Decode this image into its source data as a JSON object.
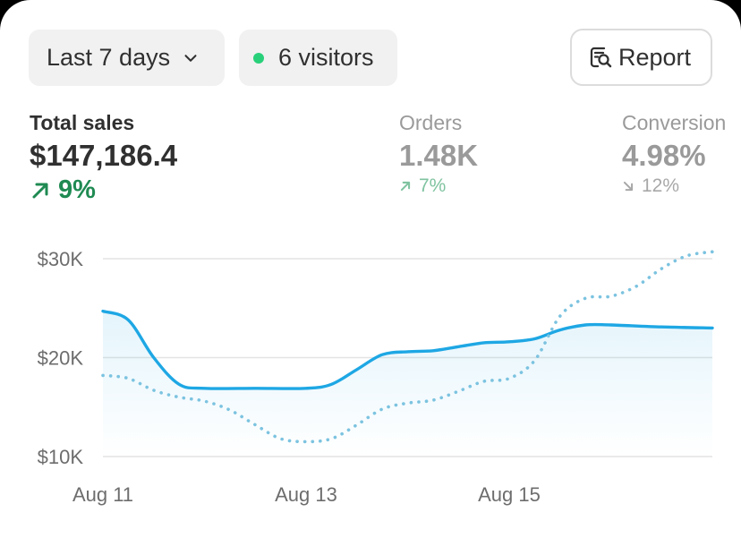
{
  "filters": {
    "range_label": "Last 7 days",
    "visitors_label": "6 visitors",
    "visitors_dot_color": "#29d07a",
    "range_icon": "chevron-down-icon",
    "report_icon": "report-search-icon"
  },
  "report_button": {
    "label": "Report"
  },
  "metrics": {
    "total_sales": {
      "label": "Total sales",
      "value": "$147,186.4",
      "delta": "9%",
      "trend": "up",
      "color": "#1f8a52"
    },
    "orders": {
      "label": "Orders",
      "value": "1.48K",
      "delta": "7%",
      "trend": "up"
    },
    "conversion": {
      "label": "Conversion",
      "value": "4.98%",
      "delta": "12%",
      "trend": "down"
    }
  },
  "chart_data": {
    "type": "line",
    "ylim": [
      10000,
      30000
    ],
    "yticks": [
      {
        "value": 30000,
        "label": "$30K"
      },
      {
        "value": 20000,
        "label": "$20K"
      },
      {
        "value": 10000,
        "label": "$10K"
      }
    ],
    "xlim": [
      0,
      6
    ],
    "xticks": [
      {
        "value": 0,
        "label": "Aug 11"
      },
      {
        "value": 2,
        "label": "Aug 13"
      },
      {
        "value": 4,
        "label": "Aug 15"
      }
    ],
    "grid": true,
    "series": [
      {
        "style": "solid",
        "color": "#1ea7e4",
        "fill": true,
        "points": [
          {
            "x": 0,
            "y": 24700
          },
          {
            "x": 0.25,
            "y": 23800
          },
          {
            "x": 0.5,
            "y": 20000
          },
          {
            "x": 0.75,
            "y": 17300
          },
          {
            "x": 1,
            "y": 16900
          },
          {
            "x": 1.5,
            "y": 16900
          },
          {
            "x": 2,
            "y": 16900
          },
          {
            "x": 2.25,
            "y": 17300
          },
          {
            "x": 2.5,
            "y": 18800
          },
          {
            "x": 2.75,
            "y": 20300
          },
          {
            "x": 3,
            "y": 20600
          },
          {
            "x": 3.25,
            "y": 20700
          },
          {
            "x": 3.5,
            "y": 21100
          },
          {
            "x": 3.75,
            "y": 21500
          },
          {
            "x": 4,
            "y": 21600
          },
          {
            "x": 4.25,
            "y": 21900
          },
          {
            "x": 4.5,
            "y": 22800
          },
          {
            "x": 4.75,
            "y": 23300
          },
          {
            "x": 5,
            "y": 23300
          },
          {
            "x": 5.5,
            "y": 23100
          },
          {
            "x": 6,
            "y": 23000
          }
        ]
      },
      {
        "style": "dotted",
        "color": "#7cc3e0",
        "fill": false,
        "points": [
          {
            "x": 0,
            "y": 18200
          },
          {
            "x": 0.25,
            "y": 17900
          },
          {
            "x": 0.5,
            "y": 16700
          },
          {
            "x": 0.75,
            "y": 16000
          },
          {
            "x": 1,
            "y": 15600
          },
          {
            "x": 1.25,
            "y": 14700
          },
          {
            "x": 1.5,
            "y": 13200
          },
          {
            "x": 1.75,
            "y": 11800
          },
          {
            "x": 2,
            "y": 11500
          },
          {
            "x": 2.25,
            "y": 11800
          },
          {
            "x": 2.5,
            "y": 13200
          },
          {
            "x": 2.75,
            "y": 14800
          },
          {
            "x": 3,
            "y": 15400
          },
          {
            "x": 3.25,
            "y": 15700
          },
          {
            "x": 3.5,
            "y": 16600
          },
          {
            "x": 3.75,
            "y": 17600
          },
          {
            "x": 4,
            "y": 17900
          },
          {
            "x": 4.25,
            "y": 19700
          },
          {
            "x": 4.5,
            "y": 24200
          },
          {
            "x": 4.75,
            "y": 26000
          },
          {
            "x": 5,
            "y": 26200
          },
          {
            "x": 5.25,
            "y": 27200
          },
          {
            "x": 5.5,
            "y": 29000
          },
          {
            "x": 5.75,
            "y": 30300
          },
          {
            "x": 6,
            "y": 30700
          }
        ]
      }
    ]
  }
}
